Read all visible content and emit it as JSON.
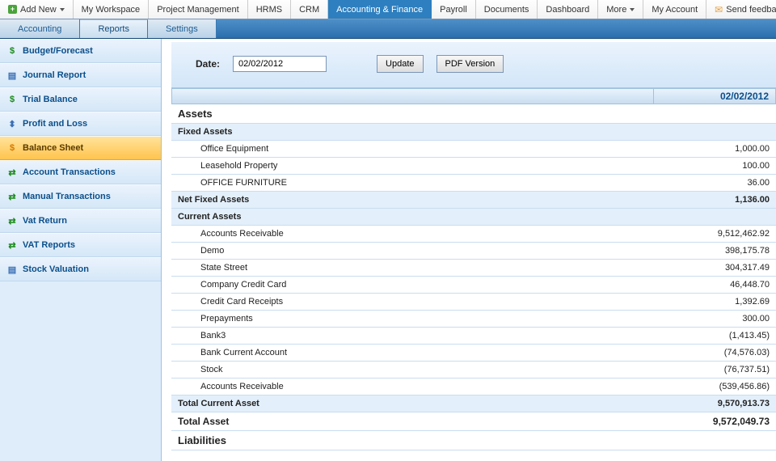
{
  "topnav": {
    "addnew": "Add New",
    "items": [
      "My Workspace",
      "Project Management",
      "HRMS",
      "CRM",
      "Accounting & Finance",
      "Payroll",
      "Documents",
      "Dashboard"
    ],
    "more": "More",
    "account": "My Account",
    "feedback": "Send feedba",
    "active_index": 4
  },
  "subnav": {
    "tabs": [
      "Accounting",
      "Reports",
      "Settings"
    ],
    "active_index": 1
  },
  "sidebar": {
    "items": [
      {
        "label": "Budget/Forecast",
        "icon": "dollar"
      },
      {
        "label": "Journal Report",
        "icon": "doc"
      },
      {
        "label": "Trial Balance",
        "icon": "dollar"
      },
      {
        "label": "Profit and Loss",
        "icon": "chart"
      },
      {
        "label": "Balance Sheet",
        "icon": "dollar-orange"
      },
      {
        "label": "Account Transactions",
        "icon": "arrows"
      },
      {
        "label": "Manual Transactions",
        "icon": "arrows"
      },
      {
        "label": "Vat Return",
        "icon": "arrows"
      },
      {
        "label": "VAT Reports",
        "icon": "arrows"
      },
      {
        "label": "Stock Valuation",
        "icon": "doc"
      }
    ],
    "active_index": 4
  },
  "toolbar": {
    "date_label": "Date:",
    "date_value": "02/02/2012",
    "update": "Update",
    "pdf": "PDF Version"
  },
  "report": {
    "header_date": "02/02/2012",
    "sections": [
      {
        "title": "Assets",
        "subsections": [
          {
            "title": "Fixed Assets",
            "lines": [
              {
                "label": "Office Equipment",
                "value": "1,000.00"
              },
              {
                "label": "Leasehold Property",
                "value": "100.00"
              },
              {
                "label": "OFFICE FURNITURE",
                "value": "36.00"
              }
            ],
            "subtotal_label": "Net Fixed Assets",
            "subtotal_value": "1,136.00"
          },
          {
            "title": "Current Assets",
            "lines": [
              {
                "label": "Accounts Receivable",
                "value": "9,512,462.92"
              },
              {
                "label": "Demo",
                "value": "398,175.78"
              },
              {
                "label": "State Street",
                "value": "304,317.49"
              },
              {
                "label": "Company Credit Card",
                "value": "46,448.70"
              },
              {
                "label": "Credit Card Receipts",
                "value": "1,392.69"
              },
              {
                "label": "Prepayments",
                "value": "300.00"
              },
              {
                "label": "Bank3",
                "value": "(1,413.45)"
              },
              {
                "label": "Bank Current Account",
                "value": "(74,576.03)"
              },
              {
                "label": "Stock",
                "value": "(76,737.51)"
              },
              {
                "label": "Accounts Receivable",
                "value": "(539,456.86)"
              }
            ],
            "subtotal_label": "Total Current Asset",
            "subtotal_value": "9,570,913.73"
          }
        ],
        "total_label": "Total Asset",
        "total_value": "9,572,049.73"
      },
      {
        "title": "Liabilities",
        "subsections": [],
        "total_label": "",
        "total_value": ""
      }
    ]
  }
}
